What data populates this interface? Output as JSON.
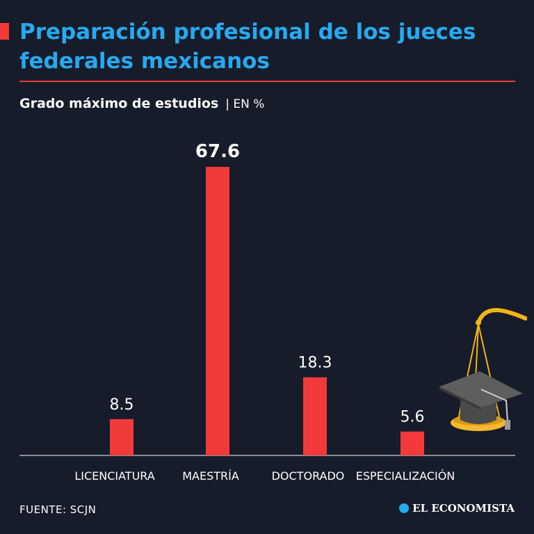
{
  "header": {
    "title": "Preparación profesional de los jueces federales mexicanos",
    "subtitle": "Grado máximo de estudios",
    "unit": "| EN %"
  },
  "footer": {
    "source": "FUENTE: SCJN",
    "brand": "EL ECONOMISTA"
  },
  "colors": {
    "background": "#161c2a",
    "title": "#27a9f0",
    "accent": "#f23a3a",
    "bar": "#f23a3a",
    "text": "#ffffff"
  },
  "icons": [
    "graduation-cap-scale-icon",
    "el-economista-logo-icon"
  ],
  "chart_data": {
    "type": "bar",
    "title": "Grado máximo de estudios",
    "ylabel": "EN %",
    "categories": [
      "LICENCIATURA",
      "MAESTRÍA",
      "DOCTORADO",
      "ESPECIALIZACIÓN"
    ],
    "values": [
      8.5,
      67.6,
      18.3,
      5.6
    ],
    "value_labels": [
      "8.5",
      "67.6",
      "18.3",
      "5.6"
    ],
    "highlight_index": 1,
    "ylim": [
      0,
      70
    ],
    "grid": false
  }
}
